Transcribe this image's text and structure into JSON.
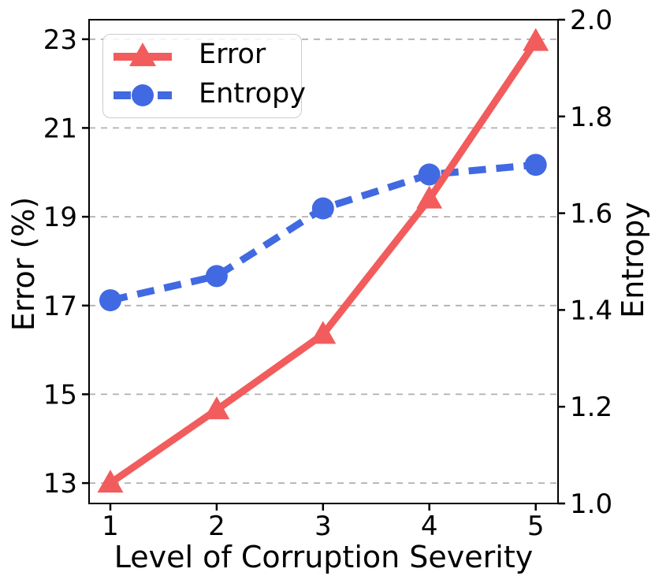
{
  "chart_data": {
    "type": "line",
    "title": "",
    "xlabel": "Level of Corruption Severity",
    "ylabel_left": "Error (%)",
    "ylabel_right": "Entropy",
    "x": [
      1,
      2,
      3,
      4,
      5
    ],
    "x_tick_labels": [
      "1",
      "2",
      "3",
      "4",
      "5"
    ],
    "xlim": [
      0.8,
      5.21
    ],
    "series": [
      {
        "name": "Error",
        "axis": "left",
        "color": "#f25c5c",
        "line_style": "solid",
        "marker": "triangle-up",
        "values": [
          13.0,
          14.65,
          16.35,
          19.4,
          22.95
        ]
      },
      {
        "name": "Entropy",
        "axis": "right",
        "color": "#4169e1",
        "line_style": "dashed",
        "marker": "circle",
        "values": [
          1.42,
          1.47,
          1.61,
          1.68,
          1.7
        ]
      }
    ],
    "left_axis": {
      "ticks": [
        13,
        15,
        17,
        19,
        21,
        23
      ],
      "tick_labels": [
        "13",
        "15",
        "17",
        "19",
        "21",
        "23"
      ],
      "range": [
        12.54,
        23.44
      ]
    },
    "right_axis": {
      "ticks": [
        1.0,
        1.2,
        1.4,
        1.6,
        1.8,
        2.0
      ],
      "tick_labels": [
        "1.0",
        "1.2",
        "1.4",
        "1.6",
        "1.8",
        "2.0"
      ],
      "range": [
        1.0,
        2.0
      ]
    },
    "grid": {
      "axis": "y",
      "style": "dashed",
      "color": "#b0b0b0"
    },
    "legend": {
      "position": "upper-left",
      "entries": [
        "Error",
        "Entropy"
      ]
    }
  }
}
